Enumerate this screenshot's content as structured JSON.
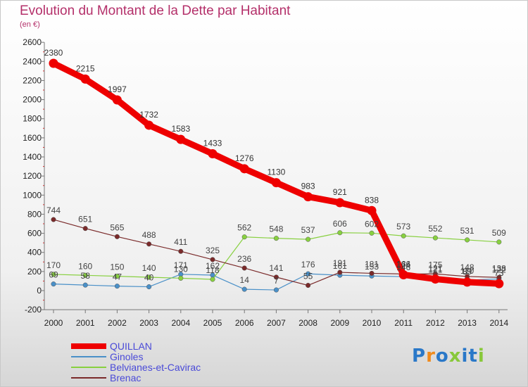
{
  "title": "Evolution du Montant de la Dette par Habitant",
  "subtitle": "(en €)",
  "logo": "Proxiti",
  "chart_data": {
    "type": "line",
    "title": "Evolution du Montant de la Dette par Habitant",
    "subtitle": "(en €)",
    "x": [
      "2000",
      "2001",
      "2002",
      "2003",
      "2004",
      "2005",
      "2006",
      "2007",
      "2008",
      "2009",
      "2010",
      "2011",
      "2012",
      "2013",
      "2014"
    ],
    "yticks": [
      -200,
      0,
      200,
      400,
      600,
      800,
      1000,
      1200,
      1400,
      1600,
      1800,
      2000,
      2200,
      2400,
      2600
    ],
    "ylim": [
      -200,
      2600
    ],
    "grid": false,
    "legend_position": "bottom-left",
    "series": [
      {
        "name": "QUILLAN",
        "color": "#ee0000",
        "values": [
          2380,
          2215,
          1997,
          1732,
          1583,
          1433,
          1276,
          1130,
          983,
          921,
          838,
          166,
          121,
          89,
          73
        ]
      },
      {
        "name": "Ginoles",
        "color": "#4a90c8",
        "values": [
          69,
          58,
          47,
          40,
          171,
          162,
          14,
          7,
          176,
          161,
          153,
          146,
          121,
          110,
          122
        ]
      },
      {
        "name": "Belvianes-et-Cavirac",
        "color": "#88d040",
        "values": [
          170,
          160,
          150,
          140,
          130,
          118,
          562,
          548,
          537,
          606,
          602,
          573,
          552,
          531,
          509
        ]
      },
      {
        "name": "Brenac",
        "color": "#7a2a2a",
        "values": [
          744,
          651,
          565,
          488,
          411,
          325,
          236,
          141,
          55,
          191,
          181,
          174,
          175,
          148,
          138
        ]
      }
    ]
  }
}
